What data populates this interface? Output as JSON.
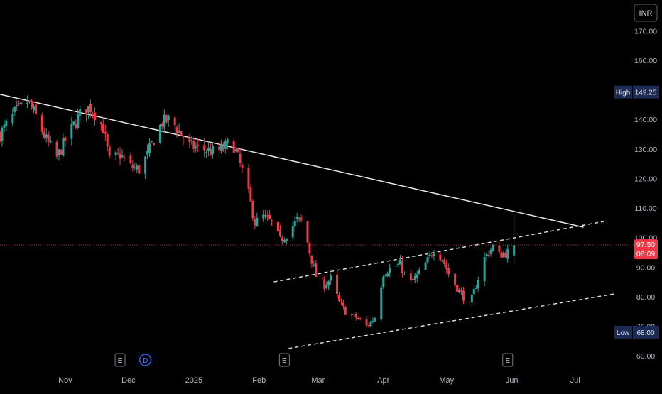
{
  "currency_label": "INR",
  "colors": {
    "background": "#000000",
    "up": "#26a69a",
    "down": "#f23645",
    "trendline": "#e6e6e6",
    "channel": "#e6e6e6",
    "price_line": "#f23645",
    "label_bg": "#1c2a56",
    "axis_text": "#b2b5be"
  },
  "markers": {
    "high_label": "High",
    "high_value": "149.25",
    "low_label": "Low",
    "low_value": "68.00",
    "last_price": "97.50",
    "countdown": "06:09"
  },
  "events": [
    {
      "label": "E",
      "date": "2024-11-27"
    },
    {
      "label": "D",
      "date": "2024-12-09"
    },
    {
      "label": "E",
      "date": "2025-02-13"
    },
    {
      "label": "E",
      "date": "2025-05-30"
    }
  ],
  "chart_data": {
    "type": "candlestick",
    "xlabel": "",
    "ylabel": "",
    "ylim": [
      55,
      178
    ],
    "xlim": [
      "2024-10-01",
      "2025-07-20"
    ],
    "y_ticks": [
      "60.00",
      "70.00",
      "80.00",
      "90.00",
      "100.00",
      "110.00",
      "120.00",
      "130.00",
      "140.00",
      "150.00",
      "160.00",
      "170.00"
    ],
    "x_ticks": [
      {
        "label": "Nov",
        "date": "2024-11-01"
      },
      {
        "label": "Dec",
        "date": "2024-12-01"
      },
      {
        "label": "2025",
        "date": "2025-01-01"
      },
      {
        "label": "Feb",
        "date": "2025-02-01"
      },
      {
        "label": "Mar",
        "date": "2025-03-01"
      },
      {
        "label": "Apr",
        "date": "2025-04-01"
      },
      {
        "label": "May",
        "date": "2025-05-01"
      },
      {
        "label": "Jun",
        "date": "2025-06-01"
      },
      {
        "label": "Jul",
        "date": "2025-07-01"
      }
    ],
    "trendline": [
      [
        "2024-10-01",
        148.5
      ],
      [
        "2025-07-05",
        103.5
      ]
    ],
    "channel_upper": [
      [
        "2025-02-08",
        85
      ],
      [
        "2025-07-15",
        105.5
      ]
    ],
    "channel_lower": [
      [
        "2025-02-15",
        62.5
      ],
      [
        "2025-07-20",
        81
      ]
    ],
    "last_price": 97.5,
    "high": 149.25,
    "low": 68.0,
    "close_path": [
      [
        "2024-10-01",
        135
      ],
      [
        "2024-10-08",
        142
      ],
      [
        "2024-10-14",
        146
      ],
      [
        "2024-10-18",
        141
      ],
      [
        "2024-10-23",
        133
      ],
      [
        "2024-10-28",
        127
      ],
      [
        "2024-11-01",
        133
      ],
      [
        "2024-11-05",
        138
      ],
      [
        "2024-11-09",
        143
      ],
      [
        "2024-11-13",
        144
      ],
      [
        "2024-11-16",
        141
      ],
      [
        "2024-11-19",
        137
      ],
      [
        "2024-11-22",
        126
      ],
      [
        "2024-11-27",
        128
      ],
      [
        "2024-12-02",
        124
      ],
      [
        "2024-12-06",
        123
      ],
      [
        "2024-12-10",
        128
      ],
      [
        "2024-12-14",
        135
      ],
      [
        "2024-12-17",
        139
      ],
      [
        "2024-12-21",
        140
      ],
      [
        "2024-12-25",
        136
      ],
      [
        "2024-12-30",
        131
      ],
      [
        "2025-01-05",
        130
      ],
      [
        "2025-01-10",
        129
      ],
      [
        "2025-01-15",
        130
      ],
      [
        "2025-01-19",
        133
      ],
      [
        "2025-01-22",
        127
      ],
      [
        "2025-01-26",
        118
      ],
      [
        "2025-01-30",
        105
      ],
      [
        "2025-02-03",
        107
      ],
      [
        "2025-02-07",
        105
      ],
      [
        "2025-02-11",
        99
      ],
      [
        "2025-02-15",
        102
      ],
      [
        "2025-02-19",
        106
      ],
      [
        "2025-02-22",
        105
      ],
      [
        "2025-02-25",
        95
      ],
      [
        "2025-02-28",
        87
      ],
      [
        "2025-03-04",
        84
      ],
      [
        "2025-03-07",
        86
      ],
      [
        "2025-03-11",
        78
      ],
      [
        "2025-03-15",
        74
      ],
      [
        "2025-03-19",
        73
      ],
      [
        "2025-03-24",
        70
      ],
      [
        "2025-03-28",
        73
      ],
      [
        "2025-04-01",
        88
      ],
      [
        "2025-04-05",
        90
      ],
      [
        "2025-04-09",
        91
      ],
      [
        "2025-04-13",
        84
      ],
      [
        "2025-04-17",
        87
      ],
      [
        "2025-04-21",
        91
      ],
      [
        "2025-04-25",
        96
      ],
      [
        "2025-04-29",
        93
      ],
      [
        "2025-05-03",
        86
      ],
      [
        "2025-05-08",
        81
      ],
      [
        "2025-05-12",
        77
      ],
      [
        "2025-05-15",
        84
      ],
      [
        "2025-05-19",
        93
      ],
      [
        "2025-05-23",
        97
      ],
      [
        "2025-05-26",
        94
      ],
      [
        "2025-05-30",
        95
      ],
      [
        "2025-06-02",
        97.5
      ]
    ]
  }
}
